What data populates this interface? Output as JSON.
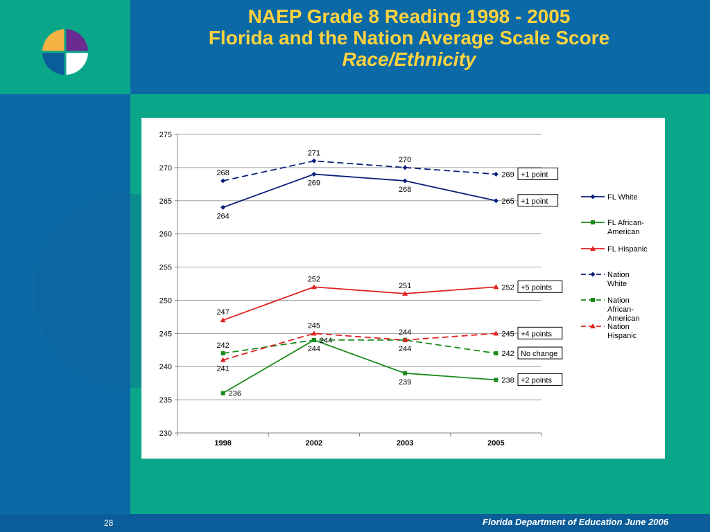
{
  "slide": {
    "title_line1": "NAEP Grade 8 Reading 1998 - 2005",
    "title_line2": "Florida and the Nation Average Scale Score",
    "title_line3": "Race/Ethnicity",
    "page_number": "28",
    "footer": "Florida Department of Education June 2006"
  },
  "colors": {
    "background_blue": "#0b6aa6",
    "teal": "#0aa68a",
    "title_yellow": "#ffd23f",
    "navy": "#0a1f7a",
    "green": "#1a8a1a",
    "red": "#e02020"
  },
  "chart_data": {
    "type": "line",
    "categories": [
      "1998",
      "2002",
      "2003",
      "2005"
    ],
    "ylim": [
      230,
      275
    ],
    "yticks": [
      "230",
      "235",
      "240",
      "245",
      "250",
      "255",
      "260",
      "265",
      "270",
      "275"
    ],
    "grid": "horizontal",
    "legend_position": "right",
    "series": [
      {
        "name": "FL White",
        "values": [
          264,
          269,
          268,
          265
        ],
        "labels": [
          "264",
          "269",
          "268",
          "265"
        ],
        "color": "#0a1f7a",
        "dash": false,
        "marker": "diamond",
        "label_pos": [
          "below",
          "below",
          "below",
          "right"
        ]
      },
      {
        "name": "FL African-American",
        "values": [
          236,
          244,
          239,
          238
        ],
        "labels": [
          "236",
          "244",
          "239",
          "238"
        ],
        "color": "#1a8a1a",
        "dash": false,
        "marker": "square",
        "label_pos": [
          "right",
          "below",
          "below",
          "right"
        ]
      },
      {
        "name": "FL Hispanic",
        "values": [
          247,
          252,
          251,
          252
        ],
        "labels": [
          "247",
          "252",
          "251",
          "252"
        ],
        "color": "#e02020",
        "dash": false,
        "marker": "triangle",
        "label_pos": [
          "above",
          "above",
          "above",
          "right"
        ]
      },
      {
        "name": "Nation White",
        "values": [
          268,
          271,
          270,
          269
        ],
        "labels": [
          "268",
          "271",
          "270",
          "269"
        ],
        "color": "#0a1f7a",
        "dash": true,
        "marker": "diamond",
        "label_pos": [
          "above",
          "above",
          "above",
          "right"
        ]
      },
      {
        "name": "Nation African-American",
        "values": [
          242,
          244,
          244,
          242
        ],
        "labels": [
          "242",
          "244",
          "244",
          "242"
        ],
        "color": "#1a8a1a",
        "dash": true,
        "marker": "square",
        "label_pos": [
          "above",
          "right",
          "below",
          "right"
        ]
      },
      {
        "name": "Nation Hispanic",
        "values": [
          241,
          245,
          244,
          245
        ],
        "labels": [
          "241",
          "245",
          "244",
          "245"
        ],
        "color": "#e02020",
        "dash": true,
        "marker": "triangle",
        "label_pos": [
          "below",
          "above",
          "above",
          "right"
        ]
      }
    ],
    "legend": [
      [
        "FL White"
      ],
      [
        "FL African-",
        "American"
      ],
      [
        "FL Hispanic"
      ],
      [
        "Nation",
        "White"
      ],
      [
        "Nation",
        "African-",
        "American"
      ],
      [
        "Nation",
        "Hispanic"
      ]
    ],
    "annotations": [
      {
        "text": "+1 point",
        "series": "Nation White"
      },
      {
        "text": "+1 point",
        "series": "FL White"
      },
      {
        "text": "+5 points",
        "series": "FL Hispanic"
      },
      {
        "text": "+4 points",
        "series": "Nation Hispanic"
      },
      {
        "text": "No change",
        "series": "Nation African-American"
      },
      {
        "text": "+2 points",
        "series": "FL African-American"
      }
    ]
  }
}
